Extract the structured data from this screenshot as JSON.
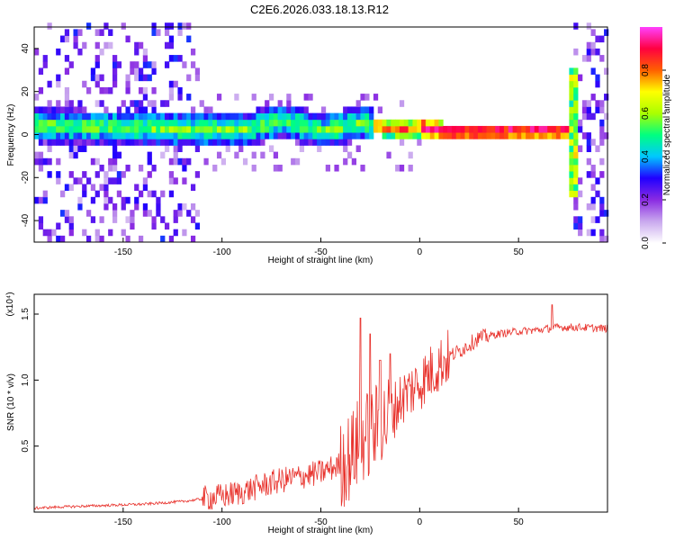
{
  "figure": {
    "title": "C2E6.2026.033.18.13.R12"
  },
  "chart_data": [
    {
      "type": "heatmap",
      "xlabel": "Height of straight line (km)",
      "ylabel": "Frequency (Hz)",
      "xlim": [
        -195,
        95
      ],
      "ylim": [
        -50,
        50
      ],
      "xticks": [
        -150,
        -100,
        -50,
        0,
        50
      ],
      "xtick_labels": [
        "-150",
        "-100",
        "-50",
        "0",
        "50"
      ],
      "yticks": [
        -40,
        -20,
        0,
        20,
        40
      ],
      "ytick_labels": [
        "-40",
        "-20",
        "0",
        "20",
        "40"
      ],
      "colorbar": {
        "label": "Normalized spectral amplitude",
        "range": [
          0,
          1
        ],
        "ticks": [
          0.0,
          0.2,
          0.4,
          0.6,
          0.8
        ],
        "tick_labels": [
          "0.0",
          "0.2",
          "0.4",
          "0.6",
          "0.8"
        ],
        "colors": [
          "#ffffff",
          "#c9a8ee",
          "#8a2be2",
          "#2000ff",
          "#00c8ff",
          "#00ff80",
          "#aaff00",
          "#ffff00",
          "#ff6000",
          "#ff0040",
          "#ff40ff"
        ]
      },
      "ridge": {
        "description_free": true,
        "x": [
          -195,
          -170,
          -150,
          -130,
          -110,
          -90,
          -70,
          -50,
          -30,
          -20,
          -10,
          0,
          10,
          30,
          50,
          70,
          75
        ],
        "y": [
          3,
          2,
          2,
          1,
          1,
          1,
          5,
          0,
          4,
          2,
          1,
          2,
          0,
          0,
          0,
          0,
          0
        ]
      }
    },
    {
      "type": "line",
      "xlabel": "Height of straight line (km)",
      "ylabel": "SNR (10 * v/v)",
      "y_multiplier": "(x10⁴)",
      "xlim": [
        -195,
        95
      ],
      "ylim": [
        0,
        1.65
      ],
      "xticks": [
        -150,
        -100,
        -50,
        0,
        50
      ],
      "xtick_labels": [
        "-150",
        "-100",
        "-50",
        "0",
        "50"
      ],
      "yticks": [
        0.5,
        1.0,
        1.5
      ],
      "ytick_labels": [
        "0.5",
        "1.0",
        "1.5"
      ],
      "series": [
        {
          "name": "SNR",
          "color": "#e8322c",
          "x": [
            -195,
            -180,
            -160,
            -140,
            -120,
            -110,
            -100,
            -90,
            -80,
            -70,
            -60,
            -50,
            -45,
            -40,
            -35,
            -30,
            -25,
            -20,
            -15,
            -10,
            -5,
            0,
            5,
            10,
            15,
            20,
            25,
            30,
            40,
            50,
            60,
            70,
            80,
            95
          ],
          "values": [
            0.03,
            0.04,
            0.05,
            0.06,
            0.08,
            0.1,
            0.12,
            0.15,
            0.2,
            0.24,
            0.27,
            0.3,
            0.33,
            0.36,
            0.42,
            0.55,
            0.6,
            0.65,
            0.72,
            0.85,
            0.92,
            0.98,
            1.05,
            1.12,
            1.18,
            1.22,
            1.27,
            1.32,
            1.35,
            1.37,
            1.38,
            1.4,
            1.4,
            1.39
          ]
        }
      ],
      "spikes_x": [
        -30,
        -25,
        -20,
        -15,
        67
      ],
      "spikes_y": [
        1.47,
        1.35,
        1.15,
        1.2,
        1.57
      ]
    }
  ]
}
